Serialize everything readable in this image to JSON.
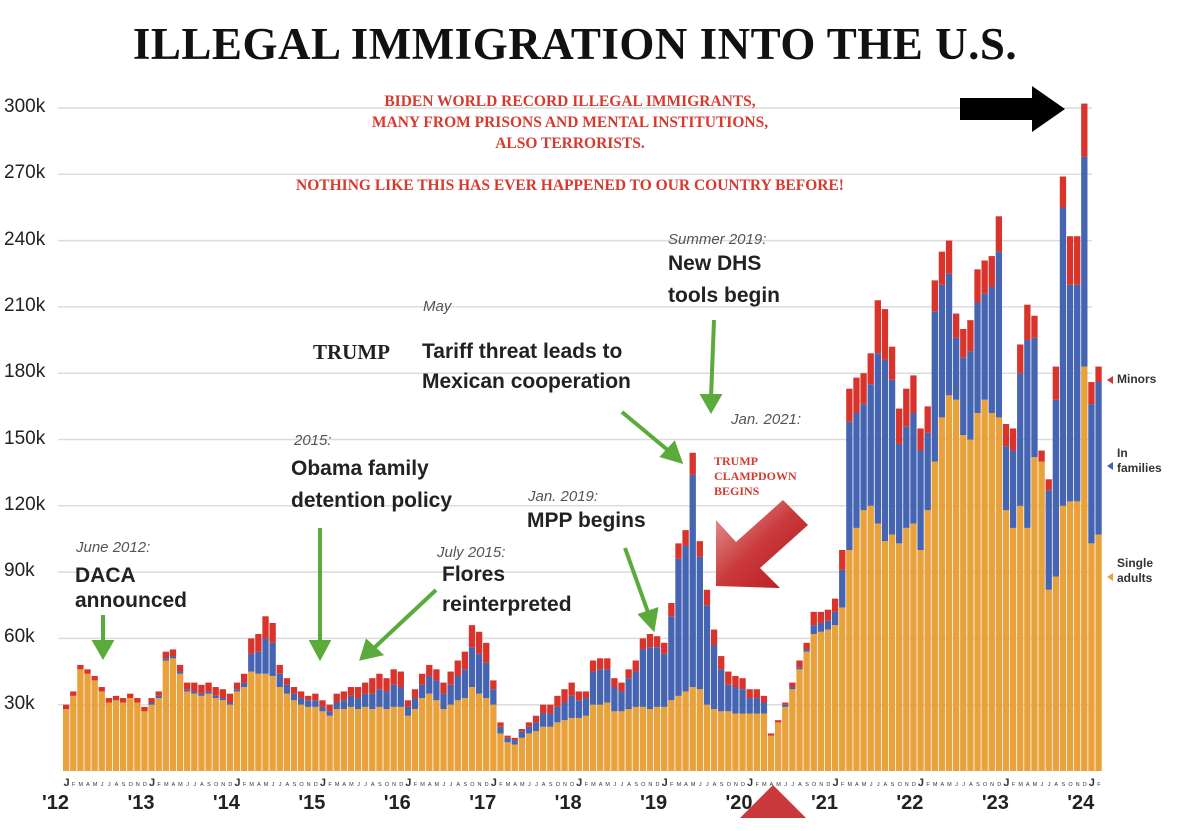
{
  "chart_data": {
    "type": "bar",
    "stacked": true,
    "title": "ILLEGAL IMMIGRATION INTO THE U.S.",
    "x_range": [
      "Jan 2012",
      "Feb 2024"
    ],
    "month_letters": [
      "J",
      "F",
      "M",
      "A",
      "M",
      "J",
      "J",
      "A",
      "S",
      "O",
      "N",
      "D"
    ],
    "x_tick_labels": [
      "'12",
      "'13",
      "'14",
      "'15",
      "'16",
      "'17",
      "'18",
      "'19",
      "'20",
      "'21",
      "'22",
      "'23",
      "'24"
    ],
    "y_tick_labels": [
      "30k",
      "60k",
      "90k",
      "120k",
      "150k",
      "180k",
      "210k",
      "240k",
      "270k",
      "300k"
    ],
    "y_ticks": [
      30,
      60,
      90,
      120,
      150,
      180,
      210,
      240,
      270,
      300
    ],
    "ylim": [
      0,
      310
    ],
    "y_unit": "thousands",
    "grid": true,
    "legend_placement": "right",
    "colors": {
      "single": "#E9A23B",
      "families": "#4565B2",
      "minors": "#D8342C"
    },
    "series": [
      {
        "name": "Single adults",
        "values": [
          28,
          34,
          46,
          44,
          41,
          36,
          31,
          32,
          31,
          33,
          31,
          27,
          30,
          33,
          50,
          51,
          44,
          36,
          35,
          34,
          35,
          33,
          32,
          30,
          36,
          38,
          45,
          44,
          44,
          43,
          38,
          35,
          32,
          30,
          29,
          29,
          27,
          25,
          28,
          28,
          29,
          28,
          29,
          28,
          29,
          28,
          29,
          29,
          25,
          28,
          33,
          35,
          32,
          28,
          30,
          32,
          33,
          38,
          35,
          33,
          30,
          17,
          13,
          12,
          15,
          17,
          18,
          20,
          20,
          22,
          23,
          24,
          24,
          25,
          30,
          30,
          31,
          27,
          27,
          28,
          29,
          29,
          28,
          29,
          29,
          32,
          34,
          36,
          38,
          37,
          30,
          28,
          27,
          27,
          26,
          26,
          26,
          26,
          26,
          16,
          22,
          29,
          37,
          46,
          54,
          62,
          63,
          64,
          66,
          74,
          100,
          110,
          118,
          120,
          112,
          104,
          107,
          103,
          110,
          112,
          100,
          118,
          140,
          160,
          170,
          168,
          152,
          150,
          162,
          168,
          162,
          160,
          118,
          110,
          120,
          110,
          142,
          140,
          82,
          88,
          120,
          122,
          122,
          183,
          103,
          107
        ]
      },
      {
        "name": "In families",
        "values": [
          0,
          0,
          0,
          0,
          0,
          0,
          0,
          0,
          0,
          0,
          0,
          0,
          1,
          1,
          1,
          1,
          1,
          1,
          1,
          1,
          1,
          1,
          1,
          1,
          1,
          2,
          8,
          10,
          16,
          15,
          6,
          4,
          3,
          3,
          3,
          3,
          2,
          2,
          3,
          4,
          5,
          5,
          6,
          7,
          8,
          8,
          10,
          9,
          4,
          5,
          6,
          8,
          9,
          7,
          9,
          11,
          13,
          18,
          18,
          16,
          7,
          3,
          2,
          2,
          3,
          3,
          4,
          6,
          6,
          7,
          8,
          10,
          8,
          8,
          15,
          16,
          15,
          11,
          9,
          14,
          16,
          26,
          28,
          27,
          24,
          38,
          62,
          66,
          96,
          60,
          45,
          29,
          19,
          12,
          12,
          11,
          7,
          7,
          5,
          0,
          0,
          1,
          1,
          1,
          1,
          4,
          4,
          4,
          6,
          17,
          58,
          52,
          48,
          55,
          77,
          82,
          70,
          45,
          46,
          50,
          45,
          35,
          68,
          60,
          55,
          28,
          35,
          40,
          50,
          48,
          57,
          75,
          29,
          35,
          60,
          85,
          54,
          0,
          45,
          80,
          135,
          98,
          98,
          95,
          63,
          69
        ]
      },
      {
        "name": "Minors",
        "values": [
          2,
          2,
          2,
          2,
          2,
          2,
          2,
          2,
          2,
          2,
          2,
          2,
          2,
          2,
          3,
          3,
          3,
          3,
          4,
          4,
          4,
          4,
          4,
          4,
          3,
          4,
          7,
          8,
          10,
          9,
          4,
          3,
          3,
          3,
          2,
          3,
          3,
          3,
          4,
          4,
          4,
          5,
          5,
          7,
          7,
          6,
          7,
          7,
          3,
          4,
          5,
          5,
          5,
          5,
          6,
          7,
          8,
          10,
          10,
          9,
          4,
          2,
          1,
          1,
          1,
          2,
          3,
          4,
          4,
          5,
          6,
          6,
          4,
          3,
          5,
          5,
          5,
          4,
          4,
          4,
          5,
          5,
          6,
          5,
          5,
          6,
          7,
          7,
          10,
          7,
          7,
          7,
          6,
          6,
          5,
          5,
          4,
          4,
          3,
          1,
          1,
          1,
          2,
          3,
          3,
          6,
          5,
          5,
          6,
          9,
          15,
          16,
          14,
          14,
          24,
          23,
          15,
          16,
          17,
          17,
          10,
          12,
          14,
          15,
          15,
          11,
          13,
          14,
          15,
          15,
          14,
          16,
          10,
          10,
          13,
          16,
          10,
          5,
          5,
          15,
          14,
          22,
          22,
          24,
          10,
          7
        ]
      }
    ]
  },
  "headline": {
    "line1": "BIDEN WORLD RECORD ILLEGAL IMMIGRANTS,",
    "line2": "MANY FROM PRISONS AND MENTAL INSTITUTIONS,",
    "line3": "ALSO TERRORISTS.",
    "line4": "NOTHING LIKE THIS HAS EVER HAPPENED TO OUR COUNTRY BEFORE!"
  },
  "annotations": {
    "daca": {
      "date": "June 2012:",
      "line1": "DACA",
      "line2": "announced"
    },
    "obama": {
      "date": "2015:",
      "line1": "Obama family",
      "line2": "detention policy"
    },
    "flores": {
      "date": "July 2015:",
      "line1": "Flores",
      "line2": "reinterpreted"
    },
    "mpp": {
      "date": "Jan. 2019:",
      "line1": "MPP begins"
    },
    "tariff": {
      "date": "May",
      "prefix": "TRUMP",
      "line1": "Tariff threat leads to",
      "line2": "Mexican cooperation"
    },
    "dhs": {
      "date": "Summer 2019:",
      "line1": "New DHS",
      "line2": "tools begin"
    },
    "jan2021": {
      "date": "Jan. 2021:"
    },
    "clampdown": {
      "line1": "TRUMP",
      "line2": "CLAMPDOWN",
      "line3": "BEGINS"
    }
  },
  "legend": {
    "minors": "Minors",
    "families_1": "In",
    "families_2": "families",
    "single_1": "Single",
    "single_2": "adults"
  }
}
